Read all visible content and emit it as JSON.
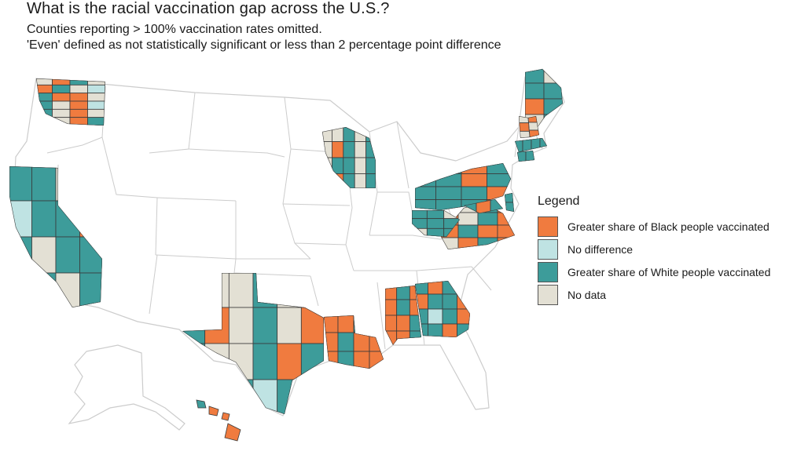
{
  "title": "What is the racial vaccination gap across the U.S.?",
  "subtitle_1": "Counties reporting > 100% vaccination rates omitted.",
  "subtitle_2": "'Even' defined as not statistically significant or less than 2 percentage point difference",
  "legend": {
    "title": "Legend",
    "items": [
      {
        "key": "black",
        "label": "Greater share of Black people vaccinated",
        "color": "#f07b3f"
      },
      {
        "key": "none",
        "label": "No difference",
        "color": "#bfe3e3"
      },
      {
        "key": "white",
        "label": "Greater share of White people vaccinated",
        "color": "#3d9c9a"
      },
      {
        "key": "nodata",
        "label": "No data",
        "color": "#e3e0d4"
      }
    ]
  },
  "colors": {
    "state_outline": "#cccccc",
    "county_border": "#3a3a3a",
    "background": "#ffffff"
  },
  "reporting_states": [
    {
      "state": "Washington",
      "dominant": "nodata",
      "cells": [
        "nodata",
        "black",
        "white",
        "nodata",
        "black",
        "white",
        "nodata",
        "none",
        "white",
        "black",
        "black",
        "nodata",
        "white",
        "nodata",
        "black",
        "none",
        "white",
        "nodata",
        "black",
        "nodata",
        "nodata"
      ]
    },
    {
      "state": "California",
      "dominant": "white",
      "cells": [
        "white",
        "white",
        "nodata",
        "white",
        "none",
        "white",
        "white",
        "black",
        "white",
        "nodata",
        "white",
        "white",
        "white",
        "white",
        "nodata",
        "white"
      ]
    },
    {
      "state": "Wisconsin",
      "dominant": "nodata",
      "cells": [
        "nodata",
        "nodata",
        "white",
        "nodata",
        "white",
        "nodata",
        "black",
        "white",
        "nodata",
        "white",
        "nodata",
        "white",
        "white",
        "nodata",
        "white",
        "nodata",
        "black",
        "white",
        "nodata",
        "white"
      ]
    },
    {
      "state": "Texas",
      "dominant": "nodata",
      "cells": [
        "nodata",
        "nodata",
        "nodata",
        "white",
        "nodata",
        "nodata",
        "white",
        "black",
        "nodata",
        "white",
        "nodata",
        "black",
        "white",
        "nodata",
        "nodata",
        "white",
        "black",
        "white",
        "nodata",
        "black",
        "white",
        "none",
        "white",
        "nodata"
      ]
    },
    {
      "state": "Louisiana",
      "dominant": "black",
      "cells": [
        "black",
        "black",
        "white",
        "black",
        "black",
        "white",
        "black",
        "black",
        "black",
        "white",
        "black",
        "black"
      ]
    },
    {
      "state": "Alabama",
      "dominant": "black",
      "cells": [
        "black",
        "white",
        "black",
        "black",
        "white",
        "black",
        "black",
        "black",
        "white",
        "black",
        "black",
        "white"
      ]
    },
    {
      "state": "Georgia",
      "dominant": "white",
      "cells": [
        "white",
        "black",
        "white",
        "white",
        "black",
        "white",
        "white",
        "black",
        "white",
        "none",
        "white",
        "black",
        "white",
        "white",
        "black",
        "white"
      ]
    },
    {
      "state": "Pennsylvania",
      "dominant": "white",
      "cells": [
        "white",
        "white",
        "black",
        "white",
        "white",
        "white",
        "black",
        "white",
        "white",
        "white",
        "white",
        "black",
        "white",
        "white",
        "white",
        "black"
      ]
    },
    {
      "state": "Virginia",
      "dominant": "black",
      "cells": [
        "black",
        "nodata",
        "white",
        "black",
        "black",
        "nodata",
        "white",
        "black",
        "black",
        "white",
        "black",
        "black",
        "nodata",
        "black",
        "white",
        "black"
      ]
    },
    {
      "state": "West Virginia",
      "dominant": "white",
      "cells": [
        "white",
        "white",
        "nodata",
        "white",
        "white",
        "white",
        "nodata",
        "white",
        "white"
      ]
    },
    {
      "state": "Maine",
      "dominant": "white",
      "cells": [
        "white",
        "nodata",
        "white",
        "white",
        "black",
        "white",
        "nodata",
        "white"
      ]
    },
    {
      "state": "New Hampshire",
      "dominant": "black",
      "cells": [
        "black",
        "nodata",
        "black"
      ]
    },
    {
      "state": "Vermont",
      "dominant": "nodata",
      "cells": [
        "nodata",
        "black",
        "nodata"
      ]
    },
    {
      "state": "Massachusetts",
      "dominant": "white",
      "cells": [
        "white",
        "white",
        "white",
        "white"
      ]
    },
    {
      "state": "Connecticut",
      "dominant": "white",
      "cells": [
        "white",
        "white"
      ]
    },
    {
      "state": "Delaware",
      "dominant": "white",
      "cells": [
        "white",
        "white"
      ]
    },
    {
      "state": "Maryland",
      "dominant": "white",
      "cells": [
        "white",
        "black",
        "white"
      ]
    },
    {
      "state": "Hawaii",
      "dominant": "black",
      "cells": [
        "white",
        "black",
        "black",
        "black"
      ]
    }
  ]
}
